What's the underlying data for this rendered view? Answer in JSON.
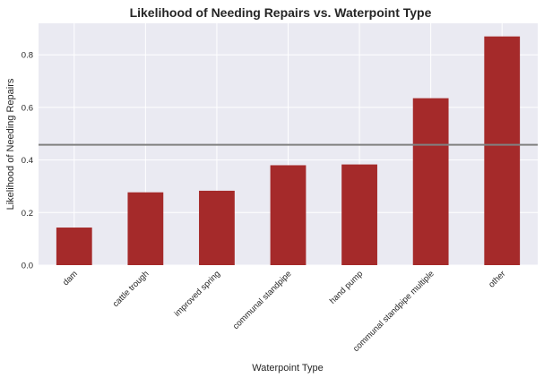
{
  "chart_data": {
    "type": "bar",
    "title": "Likelihood of Needing Repairs vs. Waterpoint Type",
    "xlabel": "Waterpoint Type",
    "ylabel": "Likelihood of Needing Repairs",
    "categories": [
      "dam",
      "cattle trough",
      "improved spring",
      "communal standpipe",
      "hand pump",
      "communal standpipe multiple",
      "other"
    ],
    "values": [
      0.143,
      0.277,
      0.283,
      0.38,
      0.383,
      0.635,
      0.87
    ],
    "reference_line": 0.458,
    "ylim": [
      0,
      0.92
    ],
    "yticks": [
      "0.0",
      "0.2",
      "0.4",
      "0.6",
      "0.8"
    ],
    "grid": true,
    "colors": {
      "bar": "#a52a2a",
      "reference_line": "#808080",
      "plot_background": "#eaeaf2",
      "grid": "#ffffff"
    }
  }
}
